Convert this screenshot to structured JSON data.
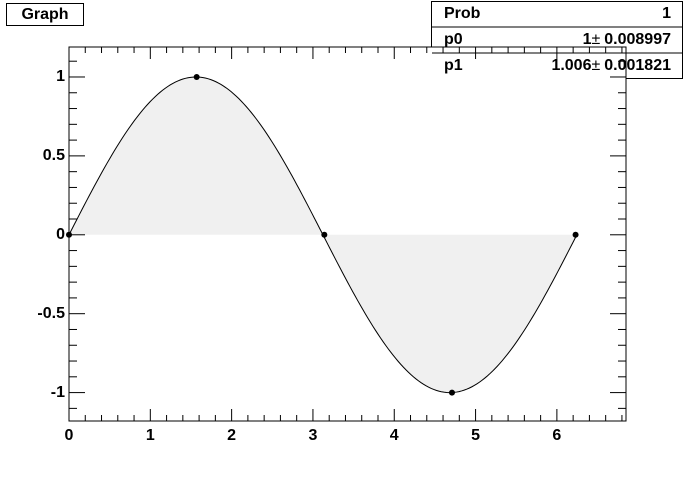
{
  "chart_data": {
    "type": "scatter",
    "title": "Graph",
    "x": [
      0,
      1.57,
      3.14,
      4.71,
      6.23
    ],
    "values": [
      0,
      1,
      0,
      -1,
      0
    ],
    "xlim": [
      0,
      6.85
    ],
    "ylim": [
      -1.18,
      1.19
    ],
    "xticks": [
      0,
      1,
      2,
      3,
      4,
      5,
      6
    ],
    "yticks": [
      -1,
      -0.5,
      0,
      0.5,
      1
    ],
    "color": "#000000",
    "fill_color": "#f0f0f0",
    "stats": {
      "separator": "±",
      "rows": [
        {
          "name": "Prob",
          "value": 1
        },
        {
          "name": "p0",
          "value": 1,
          "error": 0.008997
        },
        {
          "name": "p1",
          "value": 1.006,
          "error": 0.001821
        }
      ]
    }
  }
}
